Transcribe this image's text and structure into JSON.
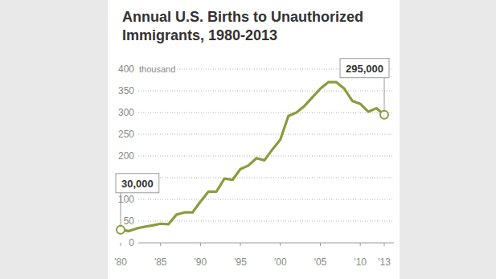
{
  "chart_data": {
    "type": "line",
    "title": "Annual U.S. Births to Unauthorized Immigrants, 1980-2013",
    "y_label": "thousand",
    "x": [
      1980,
      1981,
      1982,
      1983,
      1984,
      1985,
      1986,
      1987,
      1988,
      1989,
      1990,
      1991,
      1992,
      1993,
      1994,
      1995,
      1996,
      1997,
      1998,
      1999,
      2000,
      2001,
      2002,
      2003,
      2004,
      2005,
      2006,
      2007,
      2008,
      2009,
      2010,
      2011,
      2012,
      2013
    ],
    "values": [
      30,
      27,
      33,
      37,
      40,
      44,
      43,
      65,
      70,
      70,
      95,
      118,
      118,
      148,
      145,
      170,
      178,
      195,
      190,
      215,
      238,
      292,
      300,
      315,
      335,
      355,
      370,
      370,
      355,
      327,
      320,
      302,
      310,
      295
    ],
    "color": "#8c9b3e",
    "xlim": [
      1980,
      2013
    ],
    "xticks": [
      {
        "value": 1980,
        "label": "'80"
      },
      {
        "value": 1985,
        "label": "'85"
      },
      {
        "value": 1990,
        "label": "'90"
      },
      {
        "value": 1995,
        "label": "'95"
      },
      {
        "value": 2000,
        "label": "'00"
      },
      {
        "value": 2005,
        "label": "'05"
      },
      {
        "value": 2010,
        "label": "'10"
      },
      {
        "value": 2013,
        "label": "'13"
      }
    ],
    "ylim": [
      0,
      400
    ],
    "yticks": [
      0,
      50,
      100,
      150,
      200,
      250,
      300,
      350,
      400
    ],
    "grid": true,
    "annotations": [
      {
        "x": 1980,
        "y": 30,
        "label": "30,000"
      },
      {
        "x": 2013,
        "y": 295,
        "label": "295,000"
      }
    ]
  }
}
